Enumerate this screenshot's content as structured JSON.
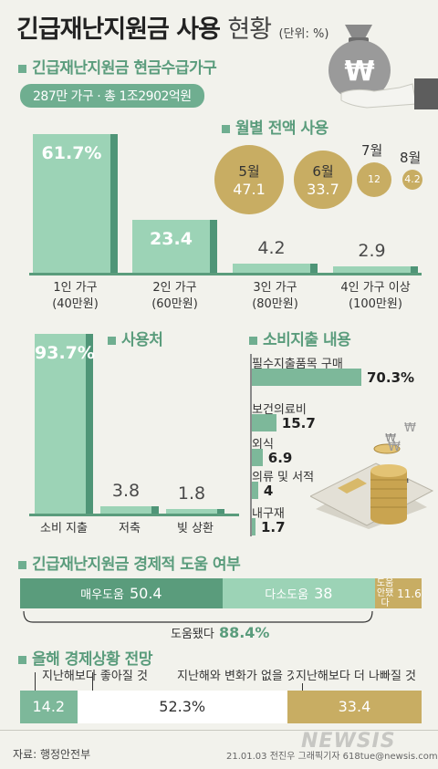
{
  "header": {
    "title_bold": "긴급재난지원금 사용",
    "title_light": "현황",
    "unit": "(단위: %)"
  },
  "section1": {
    "title": "긴급재난지원금 현금수급가구",
    "summary": "287만 가구 · 총 1조2902억원"
  },
  "colors": {
    "accent": "#6fae90",
    "bar": "#9cd3b6",
    "bar_edge": "#4f9577",
    "gold": "#c8ad63"
  },
  "chart_data": [
    {
      "type": "bar",
      "categories": [
        "1인 가구 (40만원)",
        "2인 가구 (60만원)",
        "3인 가구 (80만원)",
        "4인 가구 이상 (100만원)"
      ],
      "labels_line1": [
        "1인 가구",
        "2인 가구",
        "3인 가구",
        "4인 가구 이상"
      ],
      "labels_line2": [
        "(40만원)",
        "(60만원)",
        "(80만원)",
        "(100만원)"
      ],
      "values": [
        61.7,
        23.4,
        4.2,
        2.9
      ],
      "value_labels": [
        "61.7%",
        "23.4",
        "4.2",
        "2.9"
      ],
      "ylim": [
        0,
        65
      ]
    },
    {
      "type": "bubble",
      "title": "월별 전액 사용",
      "categories": [
        "5월",
        "6월",
        "7월",
        "8월"
      ],
      "values": [
        47.1,
        33.7,
        12,
        4.2
      ],
      "value_labels": [
        "47.1",
        "33.7",
        "12",
        "4.2"
      ]
    },
    {
      "type": "bar",
      "title": "사용처",
      "categories": [
        "소비 지출",
        "저축",
        "빚 상환"
      ],
      "values": [
        93.7,
        3.8,
        1.8
      ],
      "value_labels": [
        "93.7%",
        "3.8",
        "1.8"
      ],
      "ylim": [
        0,
        95
      ]
    },
    {
      "type": "bar",
      "orientation": "horizontal",
      "title": "소비지출 내용",
      "categories": [
        "필수지출품목 구매",
        "보건의료비",
        "외식",
        "의류 및 서적",
        "내구재"
      ],
      "values": [
        70.3,
        15.7,
        6.9,
        4,
        1.7
      ],
      "value_labels": [
        "70.3%",
        "15.7",
        "6.9",
        "4",
        "1.7"
      ],
      "xlim": [
        0,
        70.3
      ]
    },
    {
      "type": "stacked-bar",
      "title": "긴급재난지원금 경제적 도움 여부",
      "categories": [
        "매우도움",
        "다소도움",
        "도움 안됐다"
      ],
      "values": [
        50.4,
        38,
        11.6
      ],
      "value_labels": [
        "50.4",
        "38",
        "11.6"
      ],
      "total_label": "도움됐다",
      "total_value": "88.4%"
    },
    {
      "type": "stacked-bar",
      "title": "올해 경제상황 전망",
      "categories": [
        "지난해보다 좋아질 것",
        "지난해와 변화가 없을 것",
        "지난해보다 더 나빠질 것"
      ],
      "values": [
        14.2,
        52.3,
        33.4
      ],
      "value_labels": [
        "14.2",
        "52.3%",
        "33.4"
      ]
    }
  ],
  "icons": [
    "money-bag-icon",
    "hand-icon",
    "won-coin-icon",
    "credit-card-icon",
    "coin-stack-icon"
  ],
  "illustration": {
    "bag_symbol": "₩",
    "coin_symbol": "₩"
  },
  "footer": {
    "source": "자료: 행정안전부",
    "credit": "21.01.03 전진우 그래픽기자 618tue@newsis.com",
    "watermark": "NEWSIS"
  }
}
